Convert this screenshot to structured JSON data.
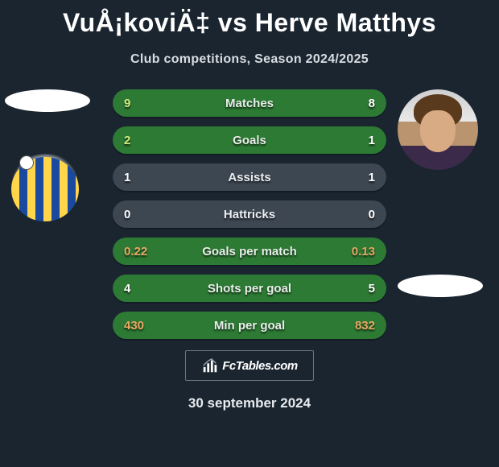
{
  "title": "VuÅ¡koviÄ‡ vs Herve Matthys",
  "subtitle": "Club competitions, Season 2024/2025",
  "date": "30 september 2024",
  "footer_brand": "FcTables.com",
  "colors": {
    "background": "#1a2530",
    "row_fills": {
      "winner": "#2d7a34",
      "neutral": "#3d4752",
      "loser": "#9a6a3a",
      "min_goal": "#934c2e"
    },
    "label_text": "#ffffff",
    "left_value_text_win": "#c9f27a",
    "left_value_text_neutral": "#ffffff",
    "right_value_text": "#ffffff"
  },
  "rows": [
    {
      "label": "Matches",
      "left": "9",
      "right": "8",
      "fill": "#2d7a34",
      "left_color": "#cdea7e",
      "right_color": "#ffffff",
      "label_color": "#e8eeea"
    },
    {
      "label": "Goals",
      "left": "2",
      "right": "1",
      "fill": "#2d7a34",
      "left_color": "#cdea7e",
      "right_color": "#ffffff",
      "label_color": "#e8eeea"
    },
    {
      "label": "Assists",
      "left": "1",
      "right": "1",
      "fill": "#3d4752",
      "left_color": "#ffffff",
      "right_color": "#ffffff",
      "label_color": "#eceff2"
    },
    {
      "label": "Hattricks",
      "left": "0",
      "right": "0",
      "fill": "#3d4752",
      "left_color": "#ffffff",
      "right_color": "#ffffff",
      "label_color": "#eceff2"
    },
    {
      "label": "Goals per match",
      "left": "0.22",
      "right": "0.13",
      "fill": "#2d7a34",
      "left_color": "#e9a864",
      "right_color": "#e9a864",
      "label_color": "#e8eeea"
    },
    {
      "label": "Shots per goal",
      "left": "4",
      "right": "5",
      "fill": "#2d7a34",
      "left_color": "#ffffff",
      "right_color": "#ffffff",
      "label_color": "#e8eeea"
    },
    {
      "label": "Min per goal",
      "left": "430",
      "right": "832",
      "fill": "#2d7a34",
      "left_color": "#e9a864",
      "right_color": "#e9a864",
      "label_color": "#e8eeea"
    }
  ]
}
